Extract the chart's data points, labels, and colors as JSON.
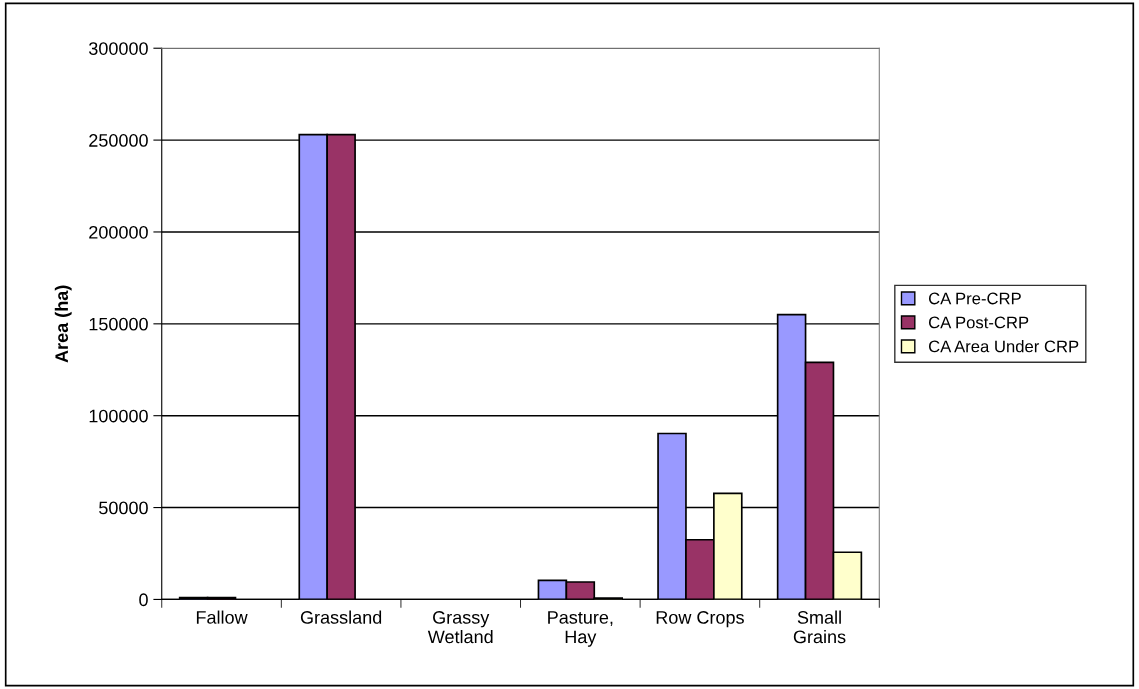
{
  "chart_data": {
    "type": "bar",
    "ylabel": "Area (ha)",
    "categories": [
      "Fallow",
      "Grassland",
      "Grassy\nWetland",
      "Pasture,\nHay",
      "Row Crops",
      "Small\nGrains"
    ],
    "series": [
      {
        "name": "CA Pre-CRP",
        "color": "#9999ff",
        "values": [
          1000,
          253000,
          null,
          10400,
          90300,
          155000
        ]
      },
      {
        "name": "CA Post-CRP",
        "color": "#993366",
        "values": [
          1000,
          253000,
          null,
          9500,
          32500,
          129000
        ]
      },
      {
        "name": "CA Area Under CRP",
        "color": "#ffffcc",
        "values": [
          null,
          null,
          null,
          700,
          57700,
          25700
        ]
      }
    ],
    "ylim": [
      0,
      300000
    ],
    "yticks": [
      0,
      50000,
      100000,
      150000,
      200000,
      250000,
      300000
    ],
    "grid": "y",
    "legend": "right"
  }
}
